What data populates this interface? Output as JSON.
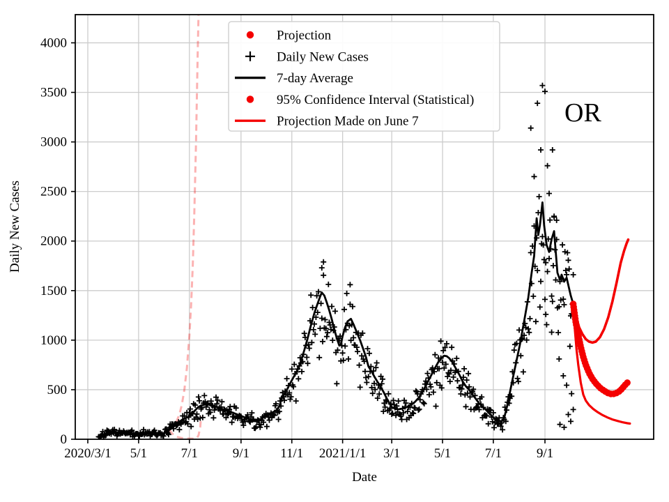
{
  "annotation": {
    "text": "OR"
  },
  "axes": {
    "xlabel": "Date",
    "ylabel": "Daily New Cases",
    "x_unit": "days since 2020-03-01",
    "x_ticks": [
      {
        "label": "2020/3/1",
        "day": 0
      },
      {
        "label": "5/1",
        "day": 61
      },
      {
        "label": "7/1",
        "day": 122
      },
      {
        "label": "9/1",
        "day": 184
      },
      {
        "label": "11/1",
        "day": 245
      },
      {
        "label": "2021/1/1",
        "day": 306
      },
      {
        "label": "3/1",
        "day": 365
      },
      {
        "label": "5/1",
        "day": 426
      },
      {
        "label": "7/1",
        "day": 487
      },
      {
        "label": "9/1",
        "day": 549
      }
    ],
    "y_ticks": [
      0,
      500,
      1000,
      1500,
      2000,
      2500,
      3000,
      3500,
      4000
    ],
    "x_range_days": [
      -15.1,
      679.5
    ],
    "y_range": [
      0,
      4289
    ],
    "grid": true
  },
  "legend": {
    "position": "upper-left-inside",
    "items": [
      {
        "marker": "dot",
        "color": "#f40000",
        "label": "Projection"
      },
      {
        "marker": "plus",
        "color": "#000000",
        "label": "Daily New Cases"
      },
      {
        "marker": "line",
        "color": "#000000",
        "label": "7-day Average"
      },
      {
        "marker": "dot",
        "color": "#f40000",
        "label": "95% Confidence Interval (Statistical)"
      },
      {
        "marker": "line",
        "color": "#f40000",
        "label": "Projection Made on June 7"
      }
    ]
  },
  "colors": {
    "red": "#f40000",
    "black": "#000000",
    "grid": "#cccccc",
    "faded_projection": "#f40000",
    "faded_projection_opacity": 0.3,
    "legend_border": "#d2d2d2",
    "background": "#ffffff"
  },
  "chart_data": {
    "type": "line+scatter",
    "title": "",
    "xlabel": "Date",
    "ylabel": "Daily New Cases",
    "x_unit": "days since 2020-03-01",
    "series": [
      {
        "name": "7-day Average",
        "style": "black-solid-line",
        "points": [
          [
            13,
            30
          ],
          [
            18,
            48
          ],
          [
            24,
            60
          ],
          [
            31,
            70
          ],
          [
            38,
            66
          ],
          [
            45,
            60
          ],
          [
            52,
            58
          ],
          [
            61,
            55
          ],
          [
            68,
            62
          ],
          [
            75,
            60
          ],
          [
            82,
            57
          ],
          [
            88,
            60
          ],
          [
            92,
            62
          ],
          [
            98,
            95
          ],
          [
            103,
            135
          ],
          [
            108,
            165
          ],
          [
            113,
            195
          ],
          [
            118,
            215
          ],
          [
            122,
            230
          ],
          [
            127,
            275
          ],
          [
            132,
            320
          ],
          [
            137,
            345
          ],
          [
            142,
            352
          ],
          [
            147,
            348
          ],
          [
            153,
            332
          ],
          [
            158,
            315
          ],
          [
            164,
            298
          ],
          [
            170,
            280
          ],
          [
            176,
            262
          ],
          [
            182,
            240
          ],
          [
            188,
            222
          ],
          [
            194,
            205
          ],
          [
            200,
            188
          ],
          [
            204,
            195
          ],
          [
            208,
            205
          ],
          [
            212,
            230
          ],
          [
            216,
            248
          ],
          [
            221,
            268
          ],
          [
            226,
            288
          ],
          [
            230,
            330
          ],
          [
            233,
            420
          ],
          [
            237,
            470
          ],
          [
            240,
            515
          ],
          [
            244,
            580
          ],
          [
            248,
            640
          ],
          [
            252,
            700
          ],
          [
            256,
            790
          ],
          [
            260,
            900
          ],
          [
            264,
            1020
          ],
          [
            268,
            1150
          ],
          [
            272,
            1270
          ],
          [
            276,
            1370
          ],
          [
            279,
            1440
          ],
          [
            281,
            1480
          ],
          [
            284,
            1450
          ],
          [
            287,
            1380
          ],
          [
            290,
            1300
          ],
          [
            293,
            1210
          ],
          [
            296,
            1110
          ],
          [
            299,
            1020
          ],
          [
            302,
            945
          ],
          [
            304,
            960
          ],
          [
            306,
            1040
          ],
          [
            309,
            1130
          ],
          [
            312,
            1190
          ],
          [
            316,
            1215
          ],
          [
            319,
            1160
          ],
          [
            323,
            1080
          ],
          [
            327,
            1000
          ],
          [
            331,
            905
          ],
          [
            334,
            830
          ],
          [
            337,
            735
          ],
          [
            341,
            680
          ],
          [
            345,
            620
          ],
          [
            350,
            550
          ],
          [
            355,
            480
          ],
          [
            360,
            395
          ],
          [
            365,
            325
          ],
          [
            369,
            308
          ],
          [
            373,
            302
          ],
          [
            377,
            308
          ],
          [
            381,
            318
          ],
          [
            385,
            332
          ],
          [
            389,
            352
          ],
          [
            393,
            378
          ],
          [
            397,
            415
          ],
          [
            401,
            465
          ],
          [
            405,
            525
          ],
          [
            409,
            590
          ],
          [
            413,
            655
          ],
          [
            417,
            720
          ],
          [
            421,
            780
          ],
          [
            425,
            822
          ],
          [
            428,
            843
          ],
          [
            431,
            838
          ],
          [
            434,
            818
          ],
          [
            438,
            775
          ],
          [
            442,
            715
          ],
          [
            446,
            655
          ],
          [
            450,
            585
          ],
          [
            454,
            535
          ],
          [
            458,
            498
          ],
          [
            462,
            452
          ],
          [
            466,
            408
          ],
          [
            470,
            362
          ],
          [
            474,
            330
          ],
          [
            478,
            298
          ],
          [
            482,
            262
          ],
          [
            486,
            228
          ],
          [
            490,
            200
          ],
          [
            494,
            186
          ],
          [
            497,
            182
          ],
          [
            500,
            215
          ],
          [
            504,
            350
          ],
          [
            509,
            560
          ],
          [
            514,
            760
          ],
          [
            519,
            960
          ],
          [
            524,
            1190
          ],
          [
            529,
            1430
          ],
          [
            533,
            1680
          ],
          [
            536,
            1850
          ],
          [
            539,
            2230
          ],
          [
            541,
            2060
          ],
          [
            543,
            2160
          ],
          [
            546,
            2390
          ],
          [
            548,
            2160
          ],
          [
            551,
            1960
          ],
          [
            554,
            1890
          ],
          [
            557,
            2020
          ],
          [
            560,
            2100
          ],
          [
            562,
            1890
          ],
          [
            564,
            1680
          ],
          [
            567,
            1610
          ],
          [
            569,
            1660
          ],
          [
            572,
            1590
          ],
          [
            575,
            1630
          ],
          [
            578,
            1520
          ],
          [
            580,
            1450
          ],
          [
            583,
            1365
          ]
        ]
      },
      {
        "name": "Daily New Cases",
        "style": "black-plus-scatter",
        "generated_from": "7-day Average",
        "day_span": [
          13,
          583
        ],
        "seed": 7,
        "noise_frac": 0.2,
        "abs_noise": 14,
        "weekly_pattern": [
          1,
          1,
          1,
          1,
          1,
          0.72,
          0.88
        ],
        "outliers": [
          [
            281,
            1730
          ],
          [
            283,
            1655
          ],
          [
            315,
            1560
          ],
          [
            424,
            990
          ],
          [
            532,
            3140
          ],
          [
            536,
            2650
          ],
          [
            540,
            3390
          ],
          [
            544,
            2920
          ],
          [
            546,
            3570
          ],
          [
            549,
            3510
          ],
          [
            552,
            2760
          ],
          [
            554,
            2480
          ],
          [
            558,
            2920
          ],
          [
            560,
            2250
          ],
          [
            563,
            2210
          ],
          [
            550,
            1260
          ],
          [
            557,
            1080
          ],
          [
            566,
            810
          ],
          [
            567,
            150
          ],
          [
            571,
            640
          ],
          [
            572,
            120
          ],
          [
            575,
            545
          ],
          [
            577,
            250
          ],
          [
            580,
            180
          ],
          [
            581,
            460
          ],
          [
            583,
            300
          ]
        ]
      },
      {
        "name": "Projection",
        "style": "thick-red-dotted",
        "points": [
          [
            583,
            1365
          ],
          [
            586,
            1180
          ],
          [
            589,
            1050
          ],
          [
            592,
            930
          ],
          [
            595,
            830
          ],
          [
            598,
            750
          ],
          [
            602,
            670
          ],
          [
            606,
            610
          ],
          [
            610,
            565
          ],
          [
            615,
            520
          ],
          [
            620,
            490
          ],
          [
            625,
            465
          ],
          [
            629,
            455
          ],
          [
            633,
            460
          ],
          [
            637,
            475
          ],
          [
            641,
            505
          ],
          [
            645,
            545
          ],
          [
            649,
            580
          ]
        ]
      },
      {
        "name": "95% CI upper",
        "style": "red-solid-line",
        "points": [
          [
            583,
            1365
          ],
          [
            586,
            1250
          ],
          [
            590,
            1130
          ],
          [
            594,
            1060
          ],
          [
            598,
            1010
          ],
          [
            602,
            985
          ],
          [
            606,
            975
          ],
          [
            610,
            985
          ],
          [
            615,
            1030
          ],
          [
            620,
            1110
          ],
          [
            625,
            1230
          ],
          [
            630,
            1390
          ],
          [
            635,
            1580
          ],
          [
            640,
            1780
          ],
          [
            644,
            1900
          ],
          [
            647,
            1975
          ],
          [
            649,
            2015
          ]
        ]
      },
      {
        "name": "95% CI lower",
        "style": "red-solid-line",
        "points": [
          [
            583,
            1365
          ],
          [
            585,
            1100
          ],
          [
            587,
            900
          ],
          [
            589,
            750
          ],
          [
            592,
            570
          ],
          [
            595,
            450
          ],
          [
            598,
            390
          ],
          [
            602,
            345
          ],
          [
            607,
            305
          ],
          [
            612,
            275
          ],
          [
            618,
            245
          ],
          [
            624,
            220
          ],
          [
            630,
            200
          ],
          [
            636,
            185
          ],
          [
            642,
            172
          ],
          [
            648,
            162
          ],
          [
            651,
            158
          ]
        ]
      },
      {
        "name": "Projection Made on June 7 (upper branch)",
        "style": "pink-dashed-line",
        "points": [
          [
            98,
            95
          ],
          [
            102,
            120
          ],
          [
            106,
            170
          ],
          [
            110,
            250
          ],
          [
            113,
            350
          ],
          [
            116,
            500
          ],
          [
            119,
            720
          ],
          [
            122,
            1050
          ],
          [
            124,
            1350
          ],
          [
            126,
            1750
          ],
          [
            128,
            2300
          ],
          [
            130,
            3000
          ],
          [
            132,
            3900
          ],
          [
            133,
            4289
          ]
        ]
      },
      {
        "name": "Projection Made on June 7 (lower branch)",
        "style": "pink-dashed-line",
        "points": [
          [
            98,
            95
          ],
          [
            101,
            60
          ],
          [
            104,
            38
          ],
          [
            108,
            22
          ],
          [
            113,
            12
          ],
          [
            120,
            8
          ],
          [
            127,
            6
          ],
          [
            131,
            12
          ],
          [
            133,
            40
          ],
          [
            135,
            120
          ],
          [
            136,
            230
          ]
        ]
      }
    ]
  }
}
